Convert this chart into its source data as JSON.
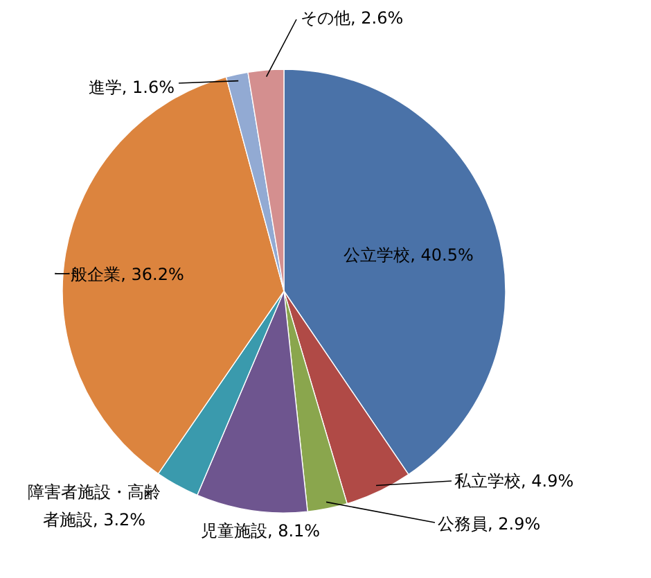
{
  "chart_data": {
    "type": "pie",
    "categories": [
      "公立学校",
      "私立学校",
      "公務員",
      "児童施設",
      "障害者施設・高齢者施設",
      "一般企業",
      "進学",
      "その他"
    ],
    "values": [
      40.5,
      4.9,
      2.9,
      8.1,
      3.2,
      36.2,
      1.6,
      2.6
    ],
    "value_labels": [
      ", 40.5%",
      ", 4.9%",
      ", 2.9%",
      ", 8.1%",
      ", 3.2%",
      ", 36.2%",
      ", 1.6%",
      ", 2.6%"
    ],
    "colors": [
      "#4a72a8",
      "#b04a46",
      "#8aa64d",
      "#6e558f",
      "#3a9aad",
      "#dc843e",
      "#92aad3",
      "#d48f8f"
    ],
    "legend": false
  }
}
